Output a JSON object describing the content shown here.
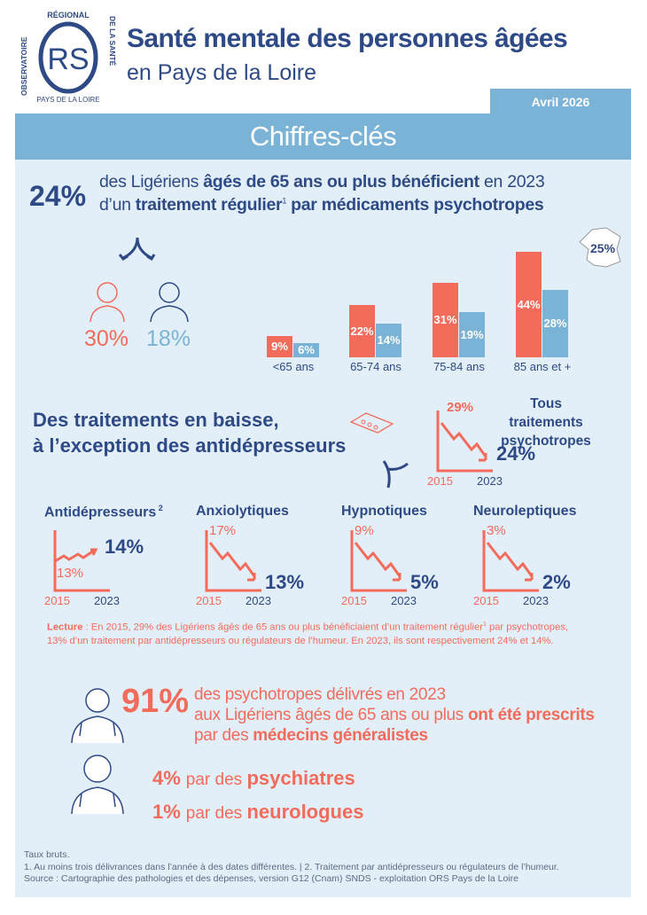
{
  "logo": {
    "top_text": "RÉGIONAL",
    "left_text": "OBSERVATOIRE",
    "right_text": "DE LA SANTÉ",
    "bottom_text": "PAYS DE LA LOIRE",
    "mark": "RS"
  },
  "header": {
    "title": "Santé mentale des personnes âgées",
    "subtitle": "en Pays de la Loire",
    "date": "Avril 2026",
    "band": "Chiffres-clés"
  },
  "key": {
    "value": "24%",
    "line1_a": "des Ligériens ",
    "line1_b": "âgés de 65 ans ou plus bénéficient",
    "line1_c": " en 2023",
    "line2_a": "d’un ",
    "line2_b": "traitement régulier",
    "line2_sup": "1",
    "line2_c": " par médicaments psychotropes"
  },
  "sex": {
    "women": "30%",
    "men": "18%"
  },
  "france": {
    "value": "25%"
  },
  "colors": {
    "women": "#f26b5b",
    "men": "#7ab3d6",
    "navy": "#2e4a86",
    "panel": "#e3eff8"
  },
  "chart_data": [
    {
      "type": "bar",
      "categories": [
        "<65 ans",
        "65-74 ans",
        "75-84 ans",
        "85 ans et +"
      ],
      "series": [
        {
          "values": [
            9,
            22,
            31,
            44
          ],
          "labels": [
            "9%",
            "22%",
            "31%",
            "44%"
          ]
        },
        {
          "values": [
            6,
            14,
            19,
            28
          ],
          "labels": [
            "6%",
            "14%",
            "19%",
            "28%"
          ]
        }
      ]
    },
    {
      "type": "line",
      "title": "Tous traitements psychotropes",
      "x": [
        2015,
        2023
      ],
      "values": [
        29,
        24
      ],
      "labels": [
        "29%",
        "24%"
      ]
    },
    {
      "type": "line",
      "title": "Antidépresseurs",
      "title_sup": "2",
      "x": [
        2015,
        2023
      ],
      "values": [
        13,
        14
      ],
      "labels": [
        "13%",
        "14%"
      ]
    },
    {
      "type": "line",
      "title": "Anxiolytiques",
      "x": [
        2015,
        2023
      ],
      "values": [
        17,
        13
      ],
      "labels": [
        "17%",
        "13%"
      ]
    },
    {
      "type": "line",
      "title": "Hypnotiques",
      "x": [
        2015,
        2023
      ],
      "values": [
        9,
        5
      ],
      "labels": [
        "9%",
        "5%"
      ]
    },
    {
      "type": "line",
      "title": "Neuroleptiques",
      "x": [
        2015,
        2023
      ],
      "values": [
        3,
        2
      ],
      "labels": [
        "3%",
        "2%"
      ]
    }
  ],
  "years": {
    "start": "2015",
    "end": "2023"
  },
  "trend": {
    "line1": "Des traitements en baisse,",
    "line2": "à l’exception des antidépresseurs"
  },
  "lecture": {
    "label": "Lecture",
    "line1": " : En 2015, 29% des Ligériens âgés de 65 ans ou plus bénéficiaient d’un traitement régulier",
    "sup": "1",
    "line1b": " par psychotropes,",
    "line2": "13% d’un traitement par antidépresseurs ou régulateurs de l’humeur. En 2023, ils sont respectivement 24% et 14%."
  },
  "prescribers": {
    "gp": {
      "value": "91%",
      "l1": "des psychotropes délivrés en 2023",
      "l2a": "aux Ligériens âgés de 65 ans ou plus ",
      "l2b": "ont été prescrits",
      "l3a": "par des ",
      "l3b": "médecins généralistes"
    },
    "psy": {
      "value": "4%",
      "a": "par des ",
      "b": "psychiatres"
    },
    "neuro": {
      "value": "1%",
      "a": "par des ",
      "b": "neurologues"
    }
  },
  "footer": {
    "l1": "Taux bruts.",
    "l2": "1. Au moins trois délivrances dans l’année à des dates différentes. | 2. Traitement par antidépresseurs ou régulateurs de l’humeur.",
    "l3": "Source : Cartographie des pathologies et des dépenses, version G12 (Cnam) SNDS - exploitation ORS Pays de la Loire"
  }
}
